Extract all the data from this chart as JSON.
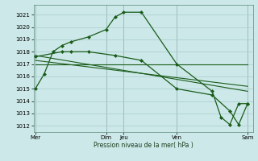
{
  "bg_color": "#cce8e8",
  "grid_color": "#aacccc",
  "line_color": "#1a5c1a",
  "marker_color": "#1a5c1a",
  "ylabel_ticks": [
    1012,
    1013,
    1014,
    1015,
    1016,
    1017,
    1018,
    1019,
    1020,
    1021
  ],
  "xtick_labels": [
    "Mer",
    "Dim",
    "Jeu",
    "Ven",
    "Sam"
  ],
  "xtick_positions": [
    0,
    4,
    5,
    8,
    12
  ],
  "xlabel": "Pression niveau de la mer( hPa )",
  "ylim": [
    1011.5,
    1021.8
  ],
  "xlim": [
    -0.1,
    12.3
  ],
  "series1": {
    "x": [
      0,
      0.5,
      1.0,
      1.5,
      2.0,
      3.0,
      4.0,
      4.5,
      5.0,
      6.0,
      8.0,
      10.0,
      10.5,
      11.0,
      11.5,
      12.0
    ],
    "y": [
      1015.0,
      1016.2,
      1018.0,
      1018.5,
      1018.8,
      1019.2,
      1019.8,
      1020.8,
      1021.2,
      1021.2,
      1017.0,
      1014.8,
      1012.7,
      1012.1,
      1013.8,
      1013.8
    ]
  },
  "series2": {
    "x": [
      0,
      1.5,
      2.0,
      3.0,
      4.5,
      6.0,
      8.0,
      10.0,
      11.0,
      11.5,
      12.0
    ],
    "y": [
      1017.6,
      1018.0,
      1018.0,
      1018.0,
      1017.7,
      1017.3,
      1015.0,
      1014.5,
      1013.2,
      1012.1,
      1013.8
    ]
  },
  "series3": {
    "x": [
      0,
      12
    ],
    "y": [
      1017.3,
      1015.2
    ]
  },
  "series4": {
    "x": [
      0,
      12
    ],
    "y": [
      1017.7,
      1014.8
    ]
  },
  "series5": {
    "x": [
      0,
      12
    ],
    "y": [
      1017.0,
      1017.0
    ]
  },
  "vlines": [
    0,
    4,
    5,
    8,
    12
  ]
}
